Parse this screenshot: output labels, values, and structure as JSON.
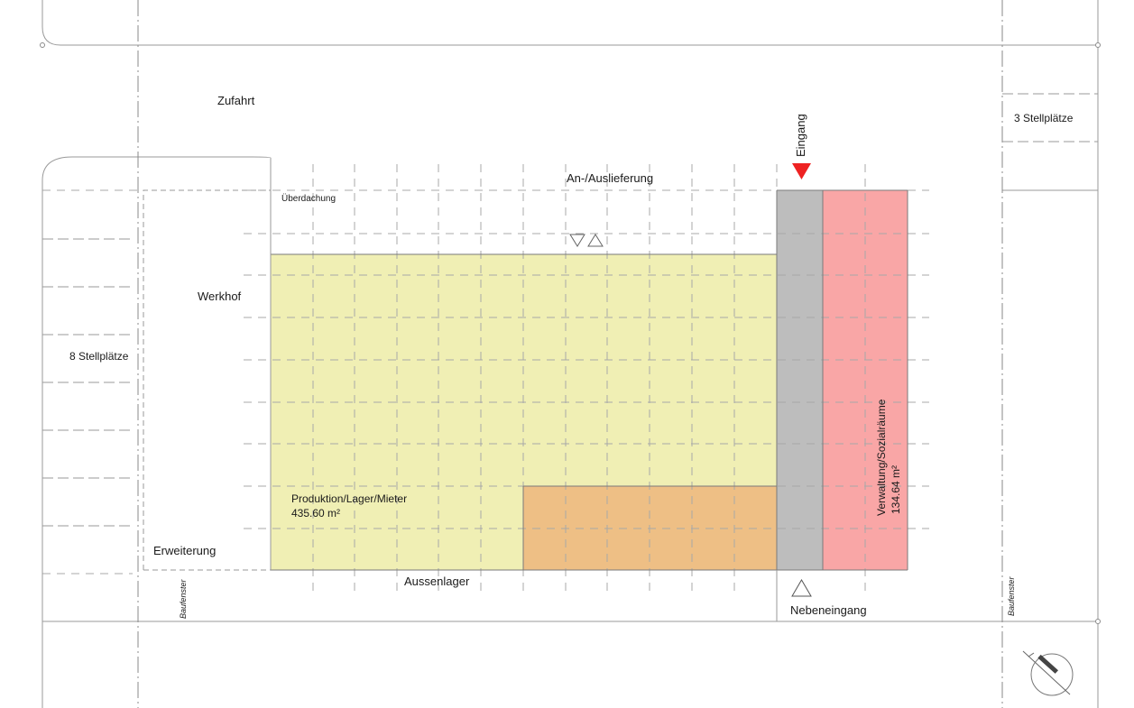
{
  "labels": {
    "zufahrt": "Zufahrt",
    "an_auslieferung": "An-/Auslieferung",
    "ueberdachung": "Überdachung",
    "werkhof": "Werkhof",
    "stellplaetze_left": "8 Stellplätze",
    "stellplaetze_right": "3 Stellplätze",
    "eingang": "Eingang",
    "produktion": "Produktion/Lager/Mieter",
    "produktion_area": "435.60 m²",
    "verwaltung": "Verwaltung/Sozialräume",
    "verwaltung_area": "134.64 m²",
    "erweiterung": "Erweiterung",
    "aussenlager": "Aussenlager",
    "nebeneingang": "Nebeneingang",
    "baufenster_left": "Baufenster",
    "baufenster_right": "Baufenster"
  },
  "colors": {
    "production": "#f0efb4",
    "storage_orange": "#eebf85",
    "circulation_gray": "#bdbdbd",
    "admin_pink": "#f9a6a6",
    "entrance_marker": "#ee2222",
    "lines": "#9a9a9a"
  },
  "icons": {
    "north_arrow": "north-arrow-icon",
    "entrance": "entrance-triangle-icon",
    "side_entrance": "side-entrance-triangle-icon"
  }
}
